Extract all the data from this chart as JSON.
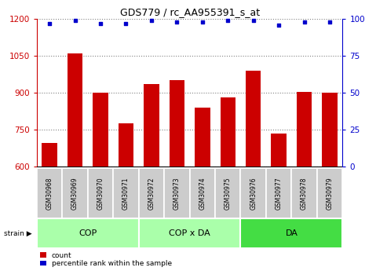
{
  "title": "GDS779 / rc_AA955391_s_at",
  "categories": [
    "GSM30968",
    "GSM30969",
    "GSM30970",
    "GSM30971",
    "GSM30972",
    "GSM30973",
    "GSM30974",
    "GSM30975",
    "GSM30976",
    "GSM30977",
    "GSM30978",
    "GSM30979"
  ],
  "bar_values": [
    695,
    1060,
    900,
    775,
    935,
    950,
    840,
    880,
    990,
    735,
    905,
    900
  ],
  "percentile_values": [
    97,
    99,
    97,
    97,
    99,
    98,
    98,
    99,
    99,
    96,
    98,
    98
  ],
  "bar_color": "#cc0000",
  "dot_color": "#0000cc",
  "ylim_left": [
    600,
    1200
  ],
  "ylim_right": [
    0,
    100
  ],
  "yticks_left": [
    600,
    750,
    900,
    1050,
    1200
  ],
  "yticks_right": [
    0,
    25,
    50,
    75,
    100
  ],
  "group_ranges": [
    {
      "label": "COP",
      "xstart": -0.5,
      "xend": 3.5,
      "color": "#aaffaa"
    },
    {
      "label": "COP x DA",
      "xstart": 3.5,
      "xend": 7.5,
      "color": "#aaffaa"
    },
    {
      "label": "DA",
      "xstart": 7.5,
      "xend": 11.5,
      "color": "#44dd44"
    }
  ],
  "xlabel_area_color": "#cccccc",
  "legend_count_label": "count",
  "legend_percentile_label": "percentile rank within the sample",
  "strain_label": "strain"
}
